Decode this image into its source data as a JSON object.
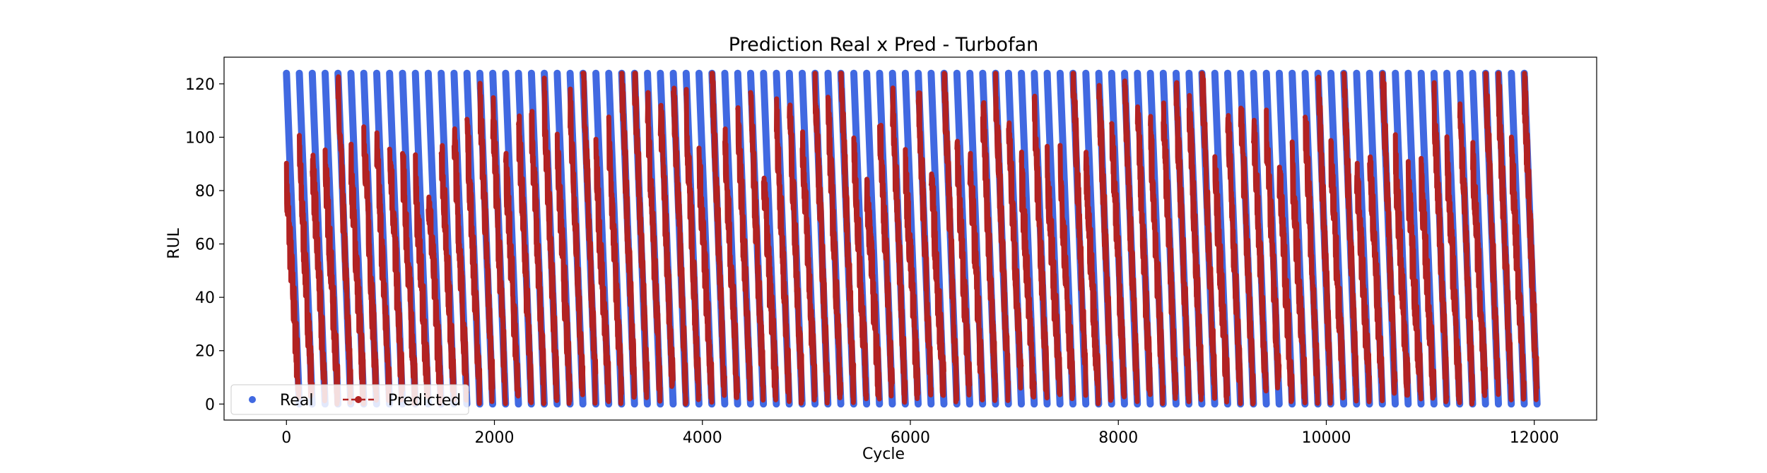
{
  "chart_data": {
    "type": "scatter",
    "title": "Prediction Real x Pred - Turbofan",
    "xlabel": "Cycle",
    "ylabel": "RUL",
    "xlim": [
      -600,
      12600
    ],
    "ylim": [
      -6,
      130
    ],
    "xticks": [
      0,
      2000,
      4000,
      6000,
      8000,
      10000,
      12000
    ],
    "yticks": [
      0,
      20,
      40,
      60,
      80,
      100,
      120
    ],
    "cycles_per_engine": 124,
    "real_max_rul": 124,
    "engine_count": 97,
    "series": [
      {
        "name": "Real",
        "color": "#4169e1",
        "marker": "circle",
        "line": "none"
      },
      {
        "name": "Predicted",
        "color": "#b22222",
        "marker": "circle",
        "line": "dashed"
      }
    ],
    "legend": {
      "position": "lower-left"
    },
    "grid": false
  }
}
